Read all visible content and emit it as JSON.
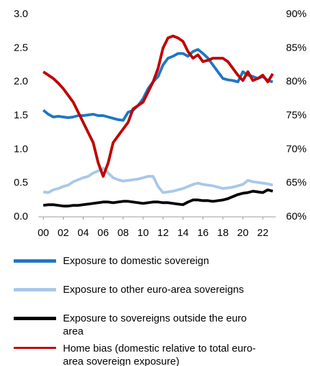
{
  "chart_data": {
    "type": "line",
    "x": [
      2000,
      2000.5,
      2001,
      2001.5,
      2002,
      2002.5,
      2003,
      2003.5,
      2004,
      2004.5,
      2005,
      2005.5,
      2006,
      2006.5,
      2007,
      2007.5,
      2008,
      2008.5,
      2009,
      2009.5,
      2010,
      2010.5,
      2011,
      2011.5,
      2012,
      2012.5,
      2013,
      2013.5,
      2014,
      2014.5,
      2015,
      2015.5,
      2016,
      2016.5,
      2017,
      2017.5,
      2018,
      2018.5,
      2019,
      2019.5,
      2020,
      2020.5,
      2021,
      2021.5,
      2022,
      2022.5,
      2023
    ],
    "xlim": [
      1999.5,
      2023.3
    ],
    "xticks": [
      {
        "value": 2000,
        "label": "00"
      },
      {
        "value": 2002,
        "label": "02"
      },
      {
        "value": 2004,
        "label": "04"
      },
      {
        "value": 2006,
        "label": "06"
      },
      {
        "value": 2008,
        "label": "08"
      },
      {
        "value": 2010,
        "label": "10"
      },
      {
        "value": 2012,
        "label": "12"
      },
      {
        "value": 2014,
        "label": "14"
      },
      {
        "value": 2016,
        "label": "16"
      },
      {
        "value": 2018,
        "label": "18"
      },
      {
        "value": 2020,
        "label": "20"
      },
      {
        "value": 2022,
        "label": "22"
      }
    ],
    "ylim": [
      0,
      3
    ],
    "yticks": [
      {
        "value": 0,
        "label": "0.0"
      },
      0.5,
      {
        "value": 1,
        "label": "1.0"
      },
      1.5,
      {
        "value": 2,
        "label": "2.0"
      },
      2.5,
      {
        "value": 3,
        "label": "3.0"
      }
    ],
    "y2lim": [
      60,
      90
    ],
    "y2ticks": [
      {
        "value": 60,
        "label": "60%"
      },
      {
        "value": 65,
        "label": "65%"
      },
      {
        "value": 70,
        "label": "70%"
      },
      {
        "value": 75,
        "label": "75%"
      },
      {
        "value": 80,
        "label": "80%"
      },
      {
        "value": 85,
        "label": "85%"
      },
      {
        "value": 90,
        "label": "90%"
      }
    ],
    "series": [
      {
        "name": "Exposure to domestic sovereign",
        "color": "#1f77c4",
        "values": [
          1.58,
          1.52,
          1.48,
          1.49,
          1.48,
          1.47,
          1.48,
          1.5,
          1.5,
          1.51,
          1.52,
          1.5,
          1.5,
          1.48,
          1.46,
          1.44,
          1.43,
          1.55,
          1.58,
          1.65,
          1.75,
          1.9,
          2.0,
          2.08,
          2.25,
          2.35,
          2.38,
          2.42,
          2.42,
          2.38,
          2.45,
          2.48,
          2.42,
          2.35,
          2.25,
          2.15,
          2.05,
          2.03,
          2.02,
          2.0,
          2.15,
          2.1,
          2.08,
          2.05,
          2.08,
          2.02,
          2.0
        ]
      },
      {
        "name": "Exposure to other euro-area sovereigns",
        "color": "#a9c8e8",
        "values": [
          0.37,
          0.36,
          0.4,
          0.42,
          0.45,
          0.47,
          0.52,
          0.55,
          0.58,
          0.6,
          0.65,
          0.68,
          0.72,
          0.65,
          0.58,
          0.55,
          0.53,
          0.54,
          0.55,
          0.56,
          0.58,
          0.6,
          0.6,
          0.45,
          0.36,
          0.37,
          0.38,
          0.4,
          0.42,
          0.45,
          0.48,
          0.5,
          0.48,
          0.47,
          0.46,
          0.44,
          0.42,
          0.43,
          0.44,
          0.46,
          0.48,
          0.54,
          0.52,
          0.51,
          0.5,
          0.49,
          0.47
        ]
      },
      {
        "name": "Exposure to sovereigns outside the euro area",
        "color": "#000000",
        "values": [
          0.17,
          0.18,
          0.18,
          0.17,
          0.16,
          0.16,
          0.17,
          0.17,
          0.18,
          0.19,
          0.2,
          0.21,
          0.22,
          0.22,
          0.21,
          0.22,
          0.23,
          0.23,
          0.22,
          0.21,
          0.2,
          0.21,
          0.22,
          0.22,
          0.21,
          0.21,
          0.2,
          0.19,
          0.18,
          0.22,
          0.25,
          0.25,
          0.24,
          0.24,
          0.23,
          0.24,
          0.25,
          0.27,
          0.3,
          0.33,
          0.35,
          0.36,
          0.38,
          0.37,
          0.36,
          0.4,
          0.38
        ]
      },
      {
        "name": "Home bias (domestic relative to total euro-area sovereign exposure)",
        "color": "#c00000",
        "axis": "y2",
        "values": [
          81.5,
          81,
          80.5,
          79.8,
          79,
          78,
          77,
          75.5,
          74,
          72.5,
          71,
          68,
          66,
          68,
          71,
          72,
          73,
          74,
          76,
          76.5,
          77,
          78.5,
          80,
          82,
          85,
          86.5,
          86.8,
          86.5,
          86,
          84.5,
          83.5,
          84,
          83,
          83.2,
          83.5,
          83.5,
          83.5,
          83,
          82,
          81,
          80.2,
          81.5,
          80.2,
          80.5,
          81,
          80,
          81.2
        ]
      }
    ]
  }
}
